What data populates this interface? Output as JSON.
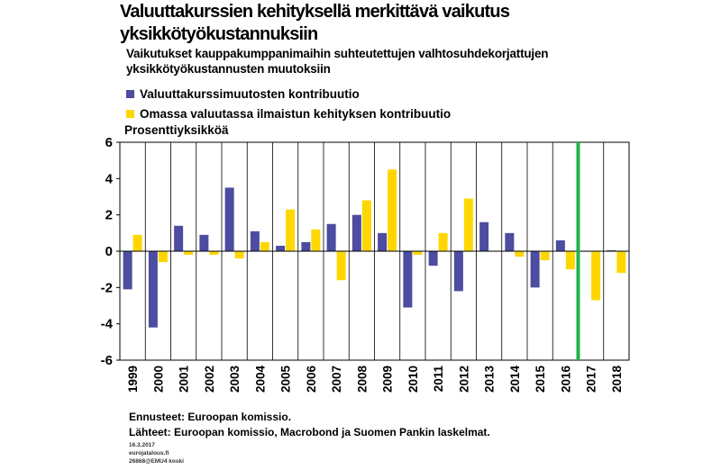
{
  "header": {
    "title_line1": "Valuuttakurssien kehityksellä merkittävä vaikutus",
    "title_line2": "yksikkötyökustannuksiin",
    "subtitle_line1": "Vaikutukset kauppakumppanimaihin suhteutettujen valhtosuhdekorjattujen",
    "subtitle_line2": "yksikkötyökustannusten muutoksiin",
    "unit": "Prosenttiyksikköä"
  },
  "footer": {
    "note1": "Ennusteet: Euroopan komissio.",
    "note2": "Lähteet: Euroopan komissio, Macrobond ja Suomen Pankin laskelmat.",
    "tiny1": "16.3.2017",
    "tiny2": "eurojatalous.fi",
    "tiny3": "26868@EMU4 koski"
  },
  "colors": {
    "series1": "#4c4ca0",
    "series2": "#ffd700",
    "marker": "#1fb14a"
  },
  "chart_data": {
    "type": "bar",
    "categories": [
      "1999",
      "2000",
      "2001",
      "2002",
      "2003",
      "2004",
      "2005",
      "2006",
      "2007",
      "2008",
      "2009",
      "2010",
      "2011",
      "2012",
      "2013",
      "2014",
      "2015",
      "2016",
      "2017",
      "2018"
    ],
    "series": [
      {
        "name": "Valuuttakurssimuutosten kontribuutio",
        "values": [
          -2.1,
          -4.2,
          1.4,
          0.9,
          3.5,
          1.1,
          0.3,
          0.5,
          1.5,
          2.0,
          1.0,
          -3.1,
          -0.8,
          -2.2,
          1.6,
          1.0,
          -2.0,
          0.6,
          0.0,
          0.05
        ]
      },
      {
        "name": "Omassa valuutassa ilmaistun kehityksen kontribuutio",
        "values": [
          0.9,
          -0.6,
          -0.2,
          -0.2,
          -0.4,
          0.5,
          2.3,
          1.2,
          -1.6,
          2.8,
          4.5,
          -0.2,
          1.0,
          2.9,
          0.0,
          -0.3,
          -0.5,
          -1.0,
          -2.7,
          -1.2
        ]
      }
    ],
    "yticks": [
      "6",
      "4",
      "2",
      "0",
      "-2",
      "-4",
      "-6"
    ],
    "ylim": [
      -6,
      6
    ],
    "marker_after_category": "2016",
    "grid": "vertical",
    "legend": "top-left"
  }
}
